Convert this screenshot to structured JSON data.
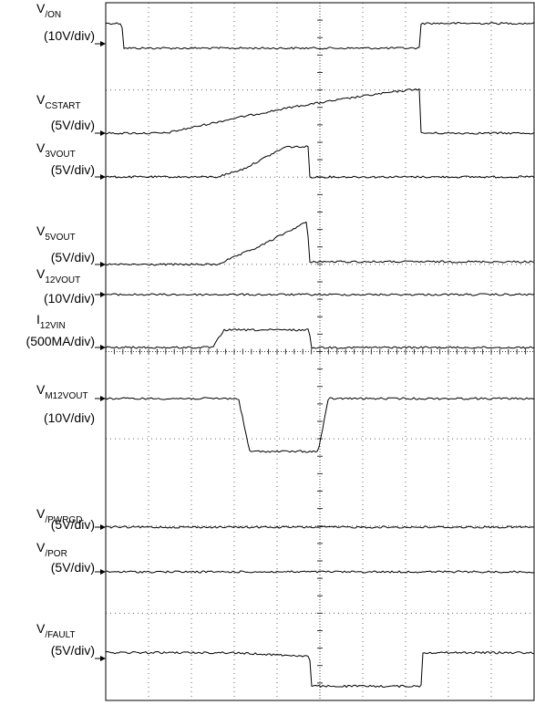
{
  "chart_data": {
    "type": "line",
    "grid": true,
    "x_divisions": 10,
    "y_divisions": 8,
    "series": [
      {
        "name": "/ON",
        "label_main": "V",
        "label_sub": "/ON",
        "scale": "(10V/div)",
        "points": [
          [
            0,
            0.28
          ],
          [
            0.19,
            0.28
          ],
          [
            0.2,
            -0.06
          ],
          [
            3.67,
            -0.06
          ],
          [
            3.68,
            0.28
          ],
          [
            5.0,
            0.28
          ]
        ]
      },
      {
        "name": "CSTART",
        "label_main": "V",
        "label_sub": "CSTART",
        "scale": "(5V/div)",
        "points": [
          [
            0,
            0
          ],
          [
            0.7,
            0
          ],
          [
            1.5,
            0.28
          ],
          [
            2.2,
            0.5
          ],
          [
            3.0,
            0.7
          ],
          [
            3.6,
            0.83
          ],
          [
            3.66,
            0.83
          ],
          [
            3.67,
            0
          ],
          [
            5.0,
            0
          ]
        ]
      },
      {
        "name": "3VOUT",
        "label_main": "V",
        "label_sub": "3VOUT",
        "scale": "(5V/div)",
        "points": [
          [
            0,
            0
          ],
          [
            1.3,
            0
          ],
          [
            1.6,
            0.14
          ],
          [
            2.1,
            0.55
          ],
          [
            2.37,
            0.55
          ],
          [
            2.38,
            0
          ],
          [
            5.0,
            0
          ]
        ]
      },
      {
        "name": "5VOUT",
        "label_main": "V",
        "label_sub": "5VOUT",
        "scale": "(5V/div)",
        "points": [
          [
            0,
            0
          ],
          [
            1.3,
            0
          ],
          [
            1.8,
            0.2
          ],
          [
            2.35,
            0.47
          ],
          [
            2.38,
            0.03
          ],
          [
            5.0,
            0.03
          ]
        ]
      },
      {
        "name": "12VOUT",
        "label_main": "V",
        "label_sub": "12VOUT",
        "scale": "(10V/div)",
        "points": [
          [
            0,
            0
          ],
          [
            5.0,
            0
          ]
        ]
      },
      {
        "name": "12VIN",
        "label_main": "I",
        "label_sub": "12VIN",
        "scale": "(500MA/div)",
        "points": [
          [
            0,
            0
          ],
          [
            1.25,
            0
          ],
          [
            1.38,
            0.32
          ],
          [
            2.38,
            0.32
          ],
          [
            2.39,
            0
          ],
          [
            5.0,
            0
          ]
        ]
      },
      {
        "name": "M12VOUT",
        "label_main": "V",
        "label_sub": "M12VOUT",
        "scale": "(10V/div)",
        "points": [
          [
            0,
            0
          ],
          [
            1.55,
            0
          ],
          [
            1.68,
            -0.58
          ],
          [
            2.48,
            -0.58
          ],
          [
            2.6,
            0
          ],
          [
            5.0,
            0
          ]
        ]
      },
      {
        "name": "/PWRGD",
        "label_main": "V",
        "label_sub": "/PWRGD",
        "scale": "(5V/div)",
        "points": [
          [
            0,
            0
          ],
          [
            5.0,
            0
          ]
        ]
      },
      {
        "name": "/POR",
        "label_main": "V",
        "label_sub": "/POR",
        "scale": "(5V/div)",
        "points": [
          [
            0,
            0
          ],
          [
            5.0,
            0
          ]
        ]
      },
      {
        "name": "/FAULT",
        "label_main": "V",
        "label_sub": "/FAULT",
        "scale": "(5V/div)",
        "points": [
          [
            0,
            0.08
          ],
          [
            1.45,
            0.08
          ],
          [
            2.38,
            0.03
          ],
          [
            2.4,
            -0.38
          ],
          [
            3.68,
            -0.38
          ],
          [
            3.7,
            0.08
          ],
          [
            5.0,
            0.08
          ]
        ]
      }
    ]
  }
}
